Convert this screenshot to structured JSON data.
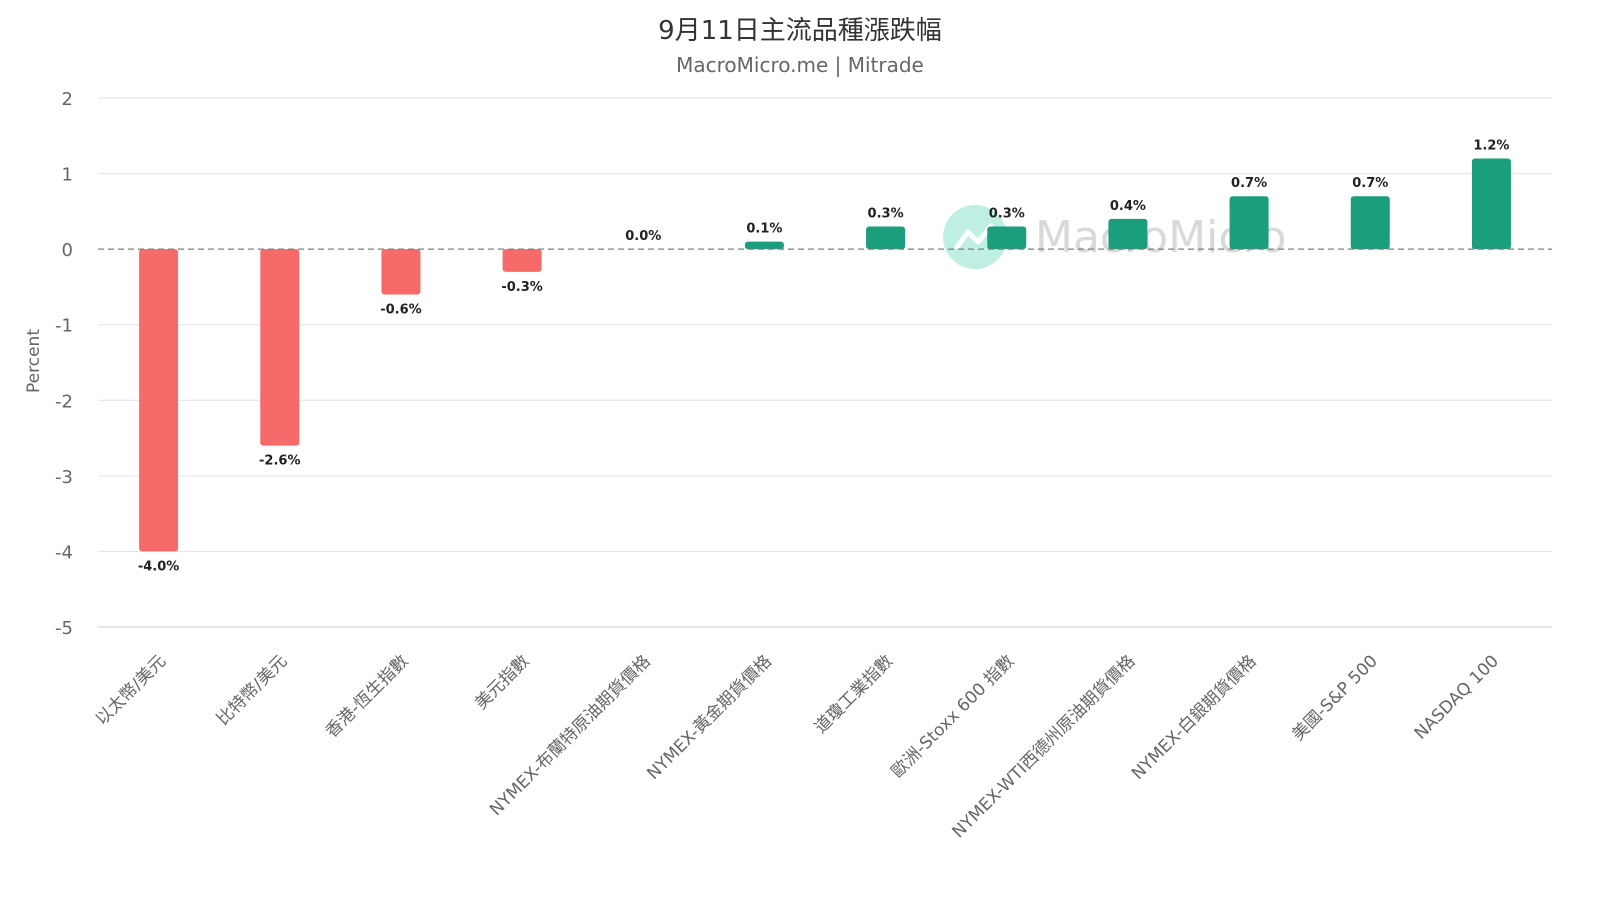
{
  "chart_data": {
    "type": "bar",
    "title": "9月11日主流品種漲跌幅",
    "subtitle": "MacroMicro.me | Mitrade",
    "ylabel": "Percent",
    "xlabel": "",
    "ylim": [
      -5,
      2
    ],
    "yticks": [
      2,
      1,
      0,
      -1,
      -2,
      -3,
      -4,
      -5
    ],
    "grid": true,
    "watermark": "MacroMicro",
    "categories": [
      "以太幣/美元",
      "比特幣/美元",
      "香港-恆生指數",
      "美元指數",
      "NYMEX-布蘭特原油期貨價格",
      "NYMEX-黃金期貨價格",
      "道瓊工業指數",
      "歐洲-Stoxx 600 指數",
      "NYMEX-WTI西德州原油期貨價格",
      "NYMEX-白銀期貨價格",
      "美國-S&P 500",
      "NASDAQ 100"
    ],
    "values": [
      -4.0,
      -2.6,
      -0.6,
      -0.3,
      0.0,
      0.1,
      0.3,
      0.3,
      0.4,
      0.7,
      0.7,
      1.2
    ],
    "data_labels": [
      "-4.0%",
      "-2.6%",
      "-0.6%",
      "-0.3%",
      "0.0%",
      "0.1%",
      "0.3%",
      "0.3%",
      "0.4%",
      "0.7%",
      "0.7%",
      "1.2%"
    ],
    "colors": {
      "positive": "#1b9e7c",
      "negative": "#f76a6a",
      "grid": "#e3e3e3",
      "zero_line": "#7f7f7f",
      "watermark": "#d9d9d9",
      "watermark_circle": "#bfeee3"
    }
  }
}
